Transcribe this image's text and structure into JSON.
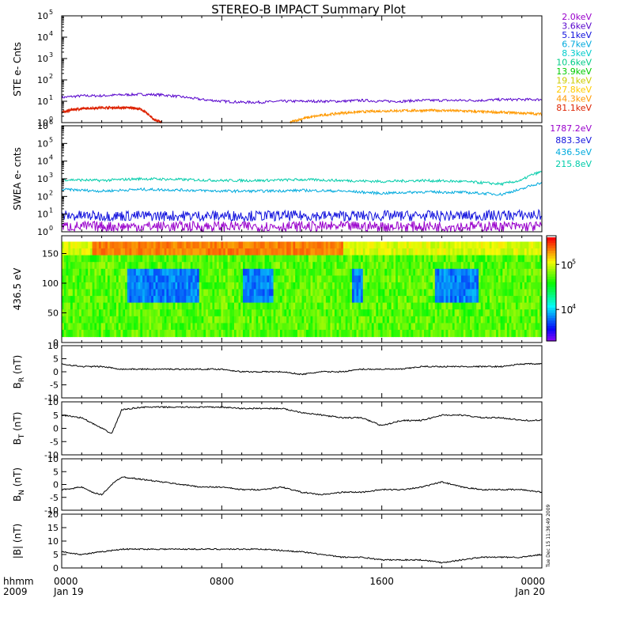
{
  "title": "STEREO-B IMPACT Summary Plot",
  "time_axis": {
    "row_label": "hhmm",
    "year": "2009",
    "ticks": [
      {
        "hours": 0,
        "time": "0000",
        "date": "Jan 19"
      },
      {
        "hours": 8,
        "time": "0800",
        "date": ""
      },
      {
        "hours": 16,
        "time": "1600",
        "date": ""
      },
      {
        "hours": 24,
        "time": "0000",
        "date": "Jan 20"
      }
    ],
    "xlim_hours": [
      0,
      24
    ]
  },
  "timestamp_note": "Tue Dec 15 11:36:49 2009",
  "colorbar": {
    "min": 2000,
    "max": 400000,
    "scale": "log",
    "ticks": [
      "10^4",
      "10^5"
    ]
  },
  "chart_data": [
    {
      "type": "line",
      "name": "ste",
      "ylabel": "STE e- Cnts",
      "yscale": "log",
      "ylim": [
        1,
        100000
      ],
      "ytick_exponents": [
        0,
        1,
        2,
        3,
        4,
        5
      ],
      "legend_position": "right",
      "legend": [
        {
          "label": "2.0keV",
          "color": "#9900cc"
        },
        {
          "label": "3.6keV",
          "color": "#5500cc"
        },
        {
          "label": "5.1keV",
          "color": "#1111dd"
        },
        {
          "label": "6.7keV",
          "color": "#00aadd"
        },
        {
          "label": "8.3keV",
          "color": "#00cccc"
        },
        {
          "label": "10.6keV",
          "color": "#00cc88"
        },
        {
          "label": "13.9keV",
          "color": "#00cc00"
        },
        {
          "label": "19.1keV",
          "color": "#cccc00"
        },
        {
          "label": "27.8keV",
          "color": "#ffcc00"
        },
        {
          "label": "44.3keV",
          "color": "#ff9900"
        },
        {
          "label": "81.1keV",
          "color": "#dd2200"
        }
      ],
      "series": [
        {
          "color": "#5500cc",
          "x": [
            0,
            1,
            2,
            3,
            4,
            5,
            6,
            7,
            8,
            9,
            10,
            11,
            12,
            13,
            14,
            15,
            16,
            17,
            18,
            19,
            20,
            21,
            22,
            23,
            24
          ],
          "y": [
            15,
            18,
            18,
            20,
            21,
            20,
            16,
            12,
            10,
            9,
            9,
            10,
            10,
            10,
            10,
            11,
            10,
            10,
            11,
            11,
            11,
            11,
            12,
            12,
            12
          ]
        },
        {
          "color": "#dd2200",
          "x": [
            0,
            0.5,
            1,
            2,
            3,
            3.5,
            4,
            4.3,
            4.6,
            5.0
          ],
          "y": [
            3,
            4,
            4.5,
            5,
            5,
            5,
            4,
            2.5,
            1.4,
            1
          ]
        },
        {
          "color": "#ff9900",
          "x": [
            11.4,
            12,
            13,
            14,
            15,
            16,
            17,
            18,
            19,
            20,
            21,
            22,
            23,
            24
          ],
          "y": [
            1,
            1.5,
            2.2,
            2.8,
            3.2,
            3.5,
            3.6,
            3.7,
            3.7,
            3.5,
            3.2,
            3,
            2.8,
            2.5
          ]
        }
      ]
    },
    {
      "type": "line",
      "name": "swea",
      "ylabel": "SWEA e- cnts",
      "yscale": "log",
      "ylim": [
        1,
        1000000
      ],
      "ytick_exponents": [
        0,
        1,
        2,
        3,
        4,
        5,
        6
      ],
      "legend_position": "right",
      "legend": [
        {
          "label": "1787.2eV",
          "color": "#9900cc"
        },
        {
          "label": "883.3eV",
          "color": "#1111dd"
        },
        {
          "label": "436.5eV",
          "color": "#00aadd"
        },
        {
          "label": "215.8eV",
          "color": "#00ccaa"
        }
      ],
      "series": [
        {
          "color": "#00ccaa",
          "x": [
            0,
            2,
            4,
            6,
            8,
            10,
            12,
            14,
            16,
            18,
            20,
            22,
            23,
            24
          ],
          "y": [
            900,
            800,
            1000,
            900,
            800,
            800,
            900,
            800,
            700,
            800,
            700,
            500,
            800,
            2500
          ]
        },
        {
          "color": "#00aadd",
          "x": [
            0,
            2,
            4,
            6,
            8,
            10,
            12,
            14,
            16,
            18,
            20,
            22,
            23,
            24
          ],
          "y": [
            250,
            200,
            250,
            230,
            200,
            200,
            220,
            200,
            150,
            180,
            170,
            130,
            250,
            600
          ]
        },
        {
          "color": "#1111dd",
          "x": [
            0,
            4,
            8,
            12,
            16,
            20,
            24
          ],
          "y": [
            8,
            8,
            8,
            8,
            8,
            8,
            9
          ]
        },
        {
          "color": "#9900cc",
          "x": [
            0,
            4,
            8,
            12,
            16,
            20,
            24
          ],
          "y": [
            2,
            2,
            2,
            2,
            2,
            2,
            2
          ]
        }
      ]
    },
    {
      "type": "heatmap",
      "name": "pad",
      "ylabel": "436.5 eV",
      "ylim": [
        0,
        180
      ],
      "yticks": [
        0,
        50,
        100,
        150
      ],
      "data_y_range": [
        10,
        170
      ],
      "notes": "pitch angle distribution; color = counts (log scale)"
    },
    {
      "type": "line",
      "name": "br",
      "ylabel": "B",
      "ylabel_sub": "R",
      "ylabel_unit": " (nT)",
      "ylim": [
        -10,
        10
      ],
      "yticks": [
        -10,
        -5,
        0,
        5,
        10
      ],
      "series": [
        {
          "color": "#000000",
          "x": [
            0,
            1,
            2,
            3,
            4,
            5,
            6,
            7,
            8,
            9,
            10,
            11,
            12,
            13,
            14,
            15,
            16,
            17,
            18,
            19,
            20,
            21,
            22,
            23,
            24
          ],
          "y": [
            3,
            2,
            2,
            1,
            1,
            1,
            1,
            1,
            1,
            0,
            0,
            0,
            -1,
            0,
            0,
            1,
            1,
            1,
            2,
            2,
            2,
            2,
            2,
            3,
            3
          ]
        }
      ]
    },
    {
      "type": "line",
      "name": "bt",
      "ylabel": "B",
      "ylabel_sub": "T",
      "ylabel_unit": " (nT)",
      "ylim": [
        -10,
        10
      ],
      "yticks": [
        -10,
        -5,
        0,
        5,
        10
      ],
      "series": [
        {
          "color": "#000000",
          "x": [
            0,
            1,
            1.5,
            2,
            2.5,
            3,
            4,
            5,
            6,
            7,
            8,
            9,
            10,
            11,
            12,
            13,
            14,
            15,
            16,
            17,
            18,
            19,
            20,
            21,
            22,
            23,
            24
          ],
          "y": [
            5,
            4,
            2,
            0,
            -2,
            7,
            8,
            8,
            8,
            8,
            8,
            7.5,
            7.5,
            7.5,
            6,
            5,
            4,
            4,
            1,
            3,
            3,
            5,
            5,
            4,
            4,
            3,
            3
          ]
        }
      ]
    },
    {
      "type": "line",
      "name": "bn",
      "ylabel": "B",
      "ylabel_sub": "N",
      "ylabel_unit": " (nT)",
      "ylim": [
        -10,
        10
      ],
      "yticks": [
        -10,
        -5,
        0,
        5,
        10
      ],
      "series": [
        {
          "color": "#000000",
          "x": [
            0,
            1,
            1.5,
            2,
            2.5,
            3,
            4,
            5,
            6,
            7,
            8,
            9,
            10,
            11,
            12,
            13,
            14,
            15,
            16,
            17,
            18,
            19,
            20,
            21,
            22,
            23,
            24
          ],
          "y": [
            -2,
            -1,
            -3,
            -4,
            0,
            3,
            2,
            1,
            0,
            -1,
            -1,
            -2,
            -2,
            -1,
            -3,
            -4,
            -3,
            -3,
            -2,
            -2,
            -1,
            1,
            -1,
            -2,
            -2,
            -2,
            -3
          ]
        }
      ]
    },
    {
      "type": "line",
      "name": "babs",
      "ylabel": "|B| (nT)",
      "ylim": [
        0,
        20
      ],
      "yticks": [
        0,
        5,
        10,
        15,
        20
      ],
      "series": [
        {
          "color": "#000000",
          "x": [
            0,
            1,
            2,
            3,
            4,
            5,
            6,
            7,
            8,
            9,
            10,
            11,
            12,
            13,
            14,
            15,
            16,
            17,
            18,
            19,
            20,
            21,
            22,
            23,
            24
          ],
          "y": [
            6,
            5,
            6,
            7,
            7,
            7,
            7,
            7,
            7,
            7,
            7,
            6.5,
            6,
            5,
            4,
            4,
            3,
            3,
            3,
            2,
            3,
            4,
            4,
            4,
            5
          ]
        }
      ]
    }
  ]
}
